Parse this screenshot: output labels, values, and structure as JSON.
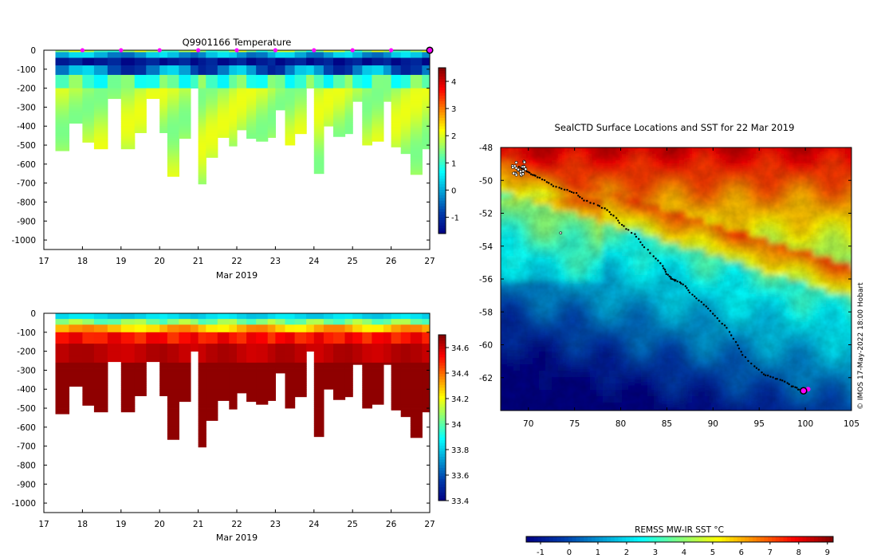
{
  "charts": {
    "temperature": {
      "title": "Q9901166  Temperature",
      "xlabel": "Mar 2019",
      "xticks": [
        "17",
        "18",
        "19",
        "20",
        "21",
        "22",
        "23",
        "24",
        "25",
        "26",
        "27"
      ],
      "yticks": [
        "0",
        "-100",
        "-200",
        "-300",
        "-400",
        "-500",
        "-600",
        "-700",
        "-800",
        "-900",
        "-1000"
      ],
      "colorbar_ticks": [
        "4",
        "3",
        "2",
        "1",
        "0",
        "-1"
      ]
    },
    "salinity": {
      "title": "",
      "xlabel": "Mar 2019",
      "xticks": [
        "17",
        "18",
        "19",
        "20",
        "21",
        "22",
        "23",
        "24",
        "25",
        "26",
        "27"
      ],
      "yticks": [
        "0",
        "-100",
        "-200",
        "-300",
        "-400",
        "-500",
        "-600",
        "-700",
        "-800",
        "-900",
        "-1000"
      ],
      "colorbar_ticks": [
        "34.6",
        "34.4",
        "34.2",
        "34",
        "33.8",
        "33.6",
        "33.4"
      ]
    },
    "map": {
      "title": "SealCTD Surface Locations and SST for 22 Mar 2019",
      "xticks": [
        "70",
        "75",
        "80",
        "85",
        "90",
        "95",
        "100",
        "105"
      ],
      "yticks": [
        "-48",
        "-50",
        "-52",
        "-54",
        "-56",
        "-58",
        "-60",
        "-62"
      ],
      "credit": "© IMOS 17-May-2022 18:00 Hobart",
      "colorbar_title": "REMSS MW-IR SST °C",
      "colorbar_ticks": [
        "-1",
        "0",
        "1",
        "2",
        "3",
        "4",
        "5",
        "6",
        "7",
        "8",
        "9"
      ]
    }
  },
  "chart_data": [
    {
      "type": "heatmap",
      "title": "Q9901166  Temperature",
      "xlabel": "Mar 2019",
      "ylabel": "",
      "xlim": [
        17,
        27
      ],
      "ylim": [
        -1050,
        0
      ],
      "clim": [
        -1.6,
        4.5
      ],
      "profile_days": [
        17.3,
        17.65,
        18.0,
        18.3,
        18.65,
        19.0,
        19.35,
        19.65,
        20.0,
        20.2,
        20.5,
        20.8,
        21.0,
        21.2,
        21.5,
        21.8,
        22.0,
        22.25,
        22.5,
        22.8,
        23.0,
        23.25,
        23.5,
        23.8,
        24.0,
        24.25,
        24.5,
        24.8,
        25.0,
        25.25,
        25.5,
        25.8,
        26.0,
        26.25,
        26.5,
        26.8,
        27.0
      ],
      "profile_max_depth": [
        -530,
        -385,
        -485,
        -520,
        -255,
        -520,
        -435,
        -255,
        -435,
        -665,
        -465,
        -200,
        -705,
        -565,
        -460,
        -505,
        -420,
        -465,
        -480,
        -460,
        -315,
        -500,
        -440,
        -200,
        -650,
        -400,
        -455,
        -440,
        -270,
        -500,
        -480,
        -270,
        -510,
        -545,
        -655,
        -520,
        -520
      ],
      "daily_markers": [
        18,
        19,
        20,
        21,
        22,
        23,
        24,
        25,
        26
      ],
      "current_marker": 27.0
    },
    {
      "type": "heatmap",
      "title": "",
      "xlabel": "Mar 2019",
      "ylabel": "",
      "xlim": [
        17,
        27
      ],
      "ylim": [
        -1050,
        0
      ],
      "clim": [
        33.4,
        34.7
      ]
    },
    {
      "type": "scatter",
      "title": "SealCTD Surface Locations and SST for 22 Mar 2019",
      "xlim": [
        67,
        105
      ],
      "ylim": [
        -64,
        -48
      ],
      "colorbar_title": "REMSS MW-IR SST °C",
      "clim": [
        -1.5,
        9.2
      ],
      "track": {
        "lon": [
          69.0,
          69.6,
          70.3,
          71.0,
          72.0,
          73.0,
          74.2,
          75.2,
          76.0,
          77.5,
          78.5,
          79.5,
          80.3,
          81.5,
          82.3,
          83.5,
          84.5,
          85.0,
          85.5,
          86.0,
          86.8,
          87.5,
          88.5,
          89.5,
          90.5,
          91.5,
          92.5,
          93.2,
          94.5,
          95.5,
          96.5,
          97.5,
          98.5,
          99.2,
          99.7
        ],
        "lat": [
          -49.2,
          -49.4,
          -49.6,
          -49.8,
          -50.1,
          -50.4,
          -50.6,
          -50.8,
          -51.2,
          -51.5,
          -51.8,
          -52.3,
          -52.8,
          -53.3,
          -53.9,
          -54.6,
          -55.2,
          -55.7,
          -56.0,
          -56.1,
          -56.3,
          -56.8,
          -57.3,
          -57.8,
          -58.4,
          -59.0,
          -59.8,
          -60.6,
          -61.3,
          -61.8,
          -62.0,
          -62.2,
          -62.5,
          -62.7,
          -62.8
        ],
        "current_position": [
          99.8,
          -62.8
        ],
        "highlight_position": [
          100.3,
          -62.7
        ]
      }
    }
  ]
}
